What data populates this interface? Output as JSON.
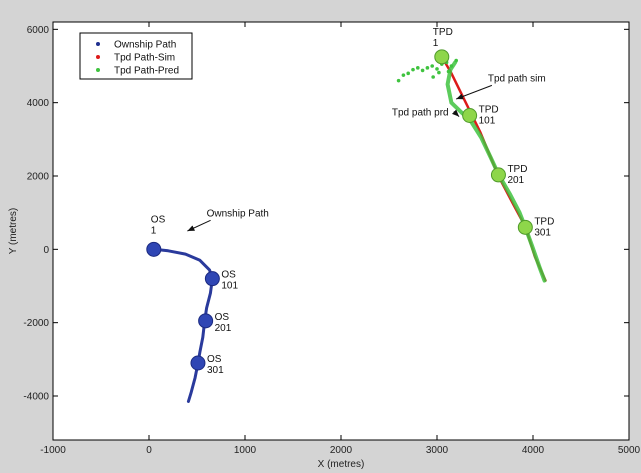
{
  "chart_data": {
    "type": "scatter",
    "title": "",
    "xlabel": "X (metres)",
    "ylabel": "Y (metres)",
    "xlim": [
      -1000,
      5000
    ],
    "ylim": [
      -5200,
      6200
    ],
    "xticks": [
      -1000,
      0,
      1000,
      2000,
      3000,
      4000,
      5000
    ],
    "yticks": [
      -4000,
      -2000,
      0,
      2000,
      4000,
      6000
    ],
    "grid": false,
    "legend_position": "top-left",
    "legend": [
      {
        "label": "Ownship Path",
        "color": "#1f2f8f"
      },
      {
        "label": "Tpd Path-Sim",
        "color": "#dd1a1a"
      },
      {
        "label": "Tpd Path-Pred",
        "color": "#3fc33f"
      }
    ],
    "series": [
      {
        "name": "Ownship Path",
        "color": "#2a3a9c",
        "points": [
          [
            50,
            0
          ],
          [
            200,
            -40
          ],
          [
            380,
            -130
          ],
          [
            530,
            -300
          ],
          [
            630,
            -560
          ],
          [
            660,
            -800
          ],
          [
            640,
            -1200
          ],
          [
            600,
            -1600
          ],
          [
            580,
            -1950
          ],
          [
            560,
            -2400
          ],
          [
            530,
            -2800
          ],
          [
            510,
            -3100
          ],
          [
            480,
            -3500
          ],
          [
            440,
            -3900
          ],
          [
            410,
            -4150
          ]
        ]
      },
      {
        "name": "Tpd Path-Sim",
        "color": "#dd1a1a",
        "points": [
          [
            3050,
            5250
          ],
          [
            3150,
            4800
          ],
          [
            3300,
            4000
          ],
          [
            3450,
            3200
          ],
          [
            3640,
            2000
          ],
          [
            3800,
            1200
          ],
          [
            3920,
            620
          ],
          [
            4020,
            -200
          ],
          [
            4130,
            -850
          ]
        ]
      },
      {
        "name": "Tpd Path-Pred",
        "color": "#3fc33f",
        "points": [
          [
            3190,
            5100
          ],
          [
            3140,
            4900
          ],
          [
            3110,
            4500
          ],
          [
            3150,
            4000
          ],
          [
            3260,
            3720
          ],
          [
            3340,
            3550
          ],
          [
            3460,
            3050
          ],
          [
            3560,
            2500
          ],
          [
            3640,
            2050
          ],
          [
            3760,
            1500
          ],
          [
            3860,
            1000
          ],
          [
            3920,
            600
          ],
          [
            3990,
            100
          ],
          [
            4070,
            -500
          ],
          [
            4120,
            -850
          ]
        ],
        "scatter": [
          [
            2600,
            4600
          ],
          [
            2650,
            4750
          ],
          [
            2700,
            4800
          ],
          [
            2750,
            4900
          ],
          [
            2800,
            4950
          ],
          [
            2850,
            4880
          ],
          [
            2900,
            4950
          ],
          [
            2950,
            5000
          ],
          [
            3000,
            4920
          ],
          [
            3050,
            5050
          ],
          [
            3100,
            5100
          ],
          [
            3150,
            5000
          ],
          [
            3200,
            5150
          ],
          [
            2960,
            4700
          ],
          [
            3020,
            4820
          ],
          [
            3120,
            4850
          ]
        ]
      }
    ],
    "markers": [
      {
        "series": "Ownship Path",
        "x": 50,
        "y": 0,
        "label1": "OS",
        "label2": "1",
        "color": "#2f46b4"
      },
      {
        "series": "Ownship Path",
        "x": 660,
        "y": -800,
        "label1": "OS",
        "label2": "101",
        "color": "#2f46b4"
      },
      {
        "series": "Ownship Path",
        "x": 590,
        "y": -1950,
        "label1": "OS",
        "label2": "201",
        "color": "#2f46b4"
      },
      {
        "series": "Ownship Path",
        "x": 510,
        "y": -3100,
        "label1": "OS",
        "label2": "301",
        "color": "#2f46b4"
      },
      {
        "series": "Tpd Path-Pred",
        "x": 3050,
        "y": 5250,
        "label1": "TPD",
        "label2": "1",
        "color": "#8ed64a"
      },
      {
        "series": "Tpd Path-Pred",
        "x": 3340,
        "y": 3650,
        "label1": "TPD",
        "label2": "101",
        "color": "#8ed64a"
      },
      {
        "series": "Tpd Path-Pred",
        "x": 3640,
        "y": 2030,
        "label1": "TPD",
        "label2": "201",
        "color": "#8ed64a"
      },
      {
        "series": "Tpd Path-Pred",
        "x": 3920,
        "y": 600,
        "label1": "TPD",
        "label2": "301",
        "color": "#8ed64a"
      }
    ],
    "annotations": [
      {
        "text": "Ownship Path",
        "x": 600,
        "y": 900,
        "arrow_to": [
          400,
          500
        ]
      },
      {
        "text": "Tpd path sim",
        "x": 3530,
        "y": 4580,
        "arrow_to": [
          3200,
          4100
        ]
      },
      {
        "text": "Tpd path prd",
        "x": 2530,
        "y": 3650,
        "arrow_to": [
          3230,
          3620
        ]
      }
    ]
  }
}
